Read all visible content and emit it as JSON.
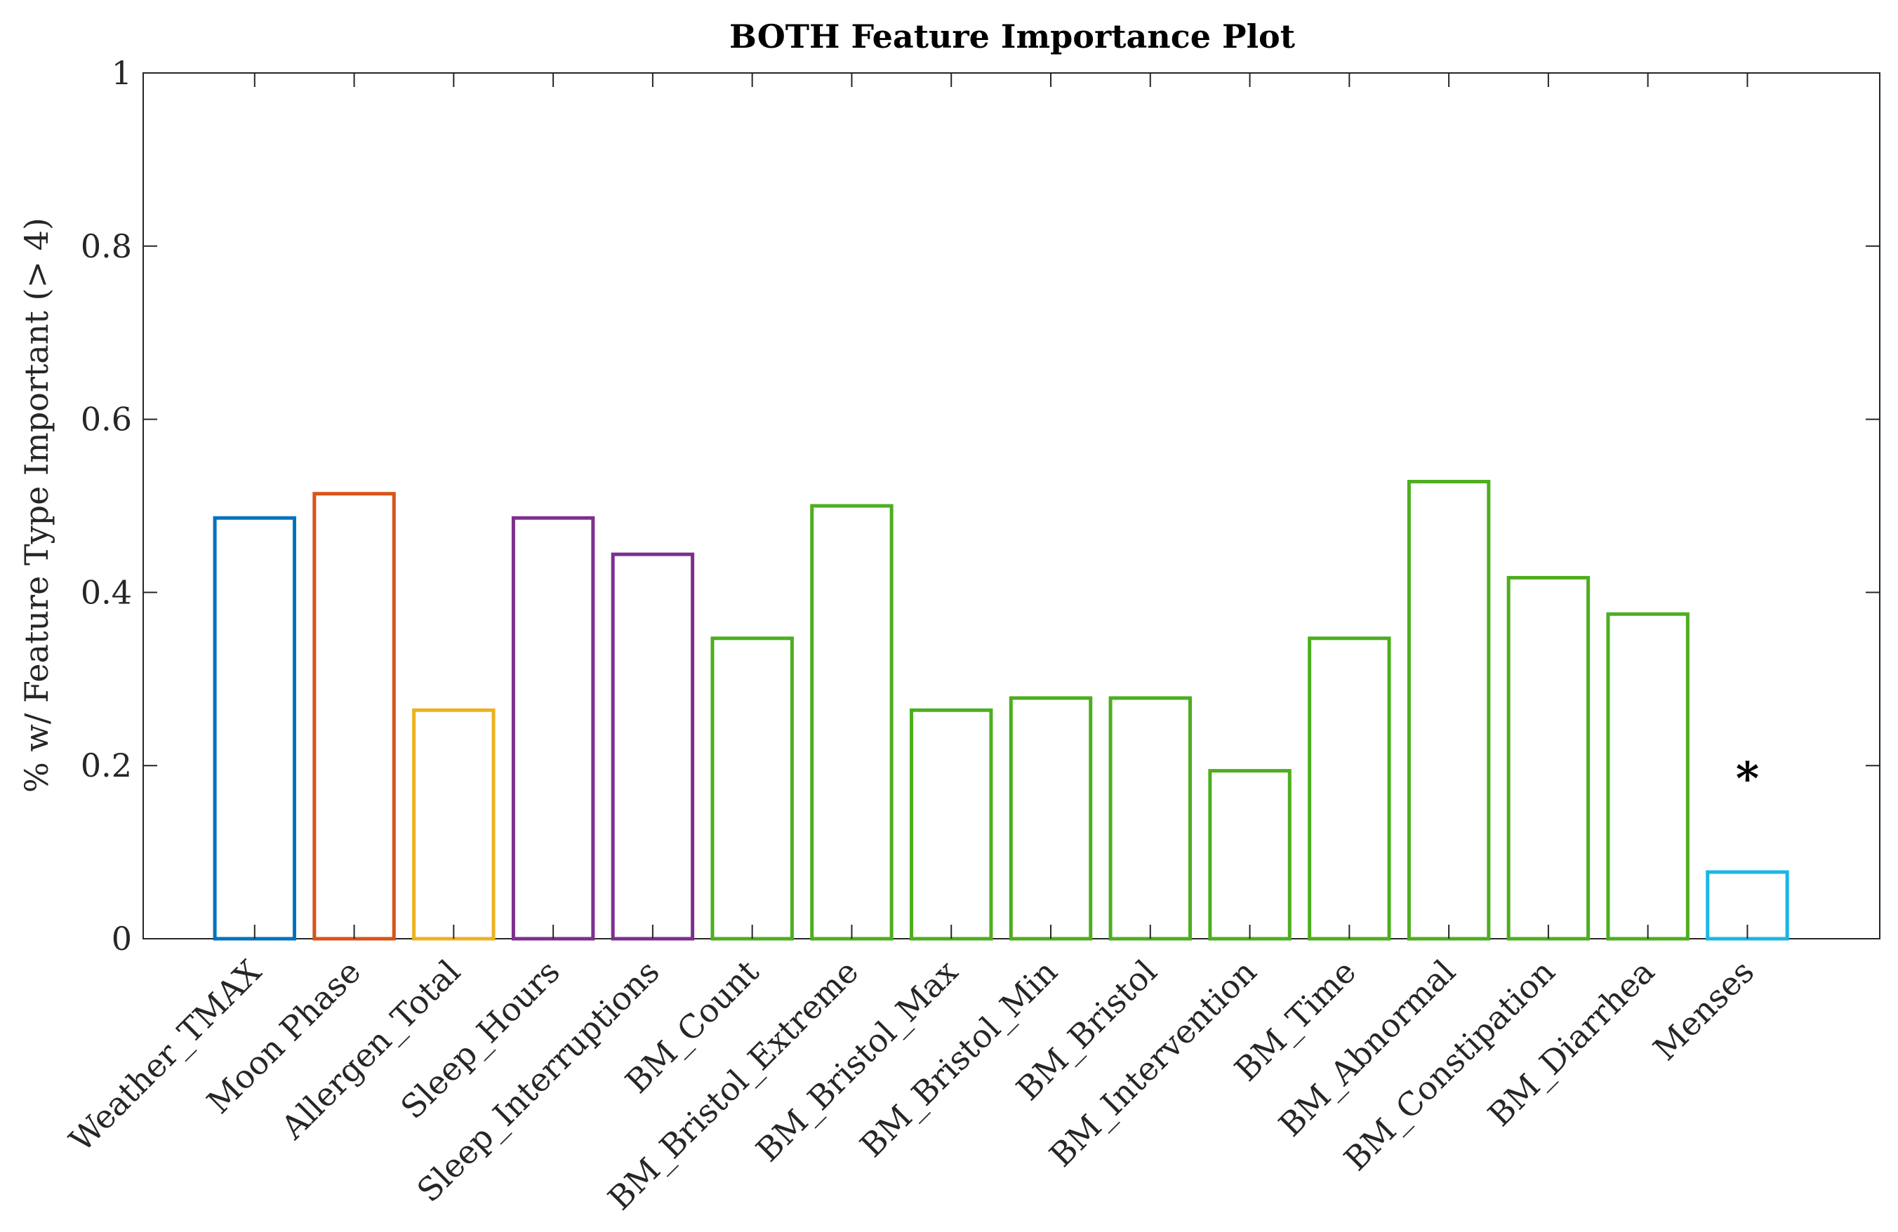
{
  "chart_data": {
    "type": "bar",
    "title": "BOTH Feature Importance Plot",
    "xlabel": "",
    "ylabel": "% w/ Feature Type Important (> 4)",
    "ylim": [
      0,
      1
    ],
    "yticks": [
      0,
      0.2,
      0.4,
      0.6,
      0.8,
      1
    ],
    "ytick_labels": [
      "0",
      "0.2",
      "0.4",
      "0.6",
      "0.8",
      "1"
    ],
    "grid": false,
    "legend": "none",
    "bar_style": "outline",
    "categories": [
      "Weather_TMAX",
      "Moon Phase",
      "Allergen_Total",
      "Sleep_Hours",
      "Sleep_Interruptions",
      "BM_Count",
      "BM_Bristol_Extreme",
      "BM_Bristol_Max",
      "BM_Bristol_Min",
      "BM_Bristol",
      "BM_Intervention",
      "BM_Time",
      "BM_Abnormal",
      "BM_Constipation",
      "BM_Diarrhea",
      "Menses"
    ],
    "values": [
      0.486,
      0.514,
      0.264,
      0.486,
      0.444,
      0.347,
      0.5,
      0.264,
      0.278,
      0.278,
      0.194,
      0.347,
      0.528,
      0.417,
      0.375,
      0.077
    ],
    "colors": [
      "#0072BD",
      "#D95319",
      "#EDB120",
      "#7E2F8E",
      "#7E2F8E",
      "#4DAE1F",
      "#4DAE1F",
      "#4DAE1F",
      "#4DAE1F",
      "#4DAE1F",
      "#4DAE1F",
      "#4DAE1F",
      "#4DAE1F",
      "#4DAE1F",
      "#4DAE1F",
      "#18B7E6"
    ],
    "annotations": [
      {
        "category": "Menses",
        "text": "*",
        "y": 0.195
      }
    ]
  },
  "colors": {
    "axis": "#262626",
    "background": "#ffffff"
  }
}
